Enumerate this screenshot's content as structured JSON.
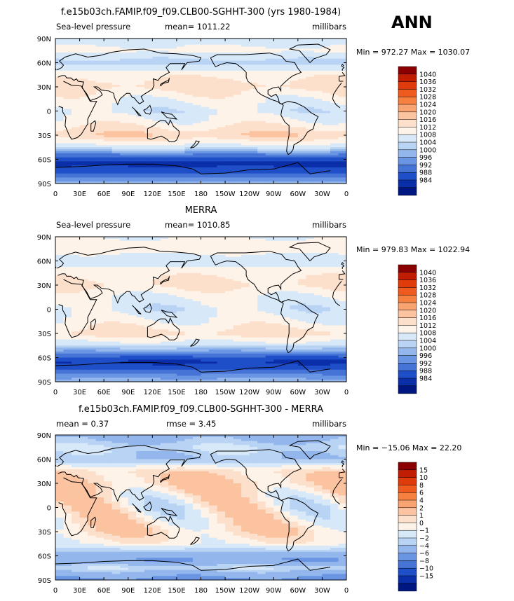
{
  "season": "ANN",
  "chart_data": [
    {
      "type": "heatmap",
      "title": "f.e15b03ch.FAMIP.f09_f09.CLB00-SGHHT-300 (yrs 1980-1984)",
      "variable": "Sea-level pressure",
      "mean_label": "mean= 1011.22",
      "units": "millibars",
      "min_max": "Min = 972.27 Max = 1030.07",
      "x_ticks": [
        "0",
        "30E",
        "60E",
        "90E",
        "120E",
        "150E",
        "180",
        "150W",
        "120W",
        "90W",
        "60W",
        "30W",
        "0"
      ],
      "y_ticks": [
        "90N",
        "60N",
        "30N",
        "0",
        "30S",
        "60S",
        "90S"
      ],
      "lat_profile": [
        {
          "lat": 90,
          "value": 1010
        },
        {
          "lat": 75,
          "value": 1013
        },
        {
          "lat": 60,
          "value": 1006
        },
        {
          "lat": 45,
          "value": 1015
        },
        {
          "lat": 30,
          "value": 1018
        },
        {
          "lat": 15,
          "value": 1013
        },
        {
          "lat": 0,
          "value": 1010
        },
        {
          "lat": -15,
          "value": 1014
        },
        {
          "lat": -30,
          "value": 1020
        },
        {
          "lat": -45,
          "value": 1010
        },
        {
          "lat": -55,
          "value": 994
        },
        {
          "lat": -65,
          "value": 986
        },
        {
          "lat": -75,
          "value": 990
        },
        {
          "lat": -90,
          "value": 1002
        }
      ],
      "colorbar": {
        "labels": [
          "1040",
          "1036",
          "1032",
          "1028",
          "1024",
          "1020",
          "1016",
          "1012",
          "1008",
          "1004",
          "1000",
          "996",
          "992",
          "988",
          "984"
        ],
        "colors": [
          "#8b0000",
          "#c11d02",
          "#e03b0a",
          "#ef5a1e",
          "#f5803f",
          "#f9a272",
          "#fbc3a0",
          "#fde0cb",
          "#fdf3e9",
          "#d7e8f9",
          "#b8d3f3",
          "#93b7ec",
          "#6a95e3",
          "#4573d6",
          "#1f4fc8",
          "#0b2fa8",
          "#001680"
        ]
      }
    },
    {
      "type": "heatmap",
      "title": "MERRA",
      "variable": "Sea-level pressure",
      "mean_label": "mean= 1010.85",
      "units": "millibars",
      "min_max": "Min = 979.83 Max = 1022.94",
      "x_ticks": [
        "0",
        "30E",
        "60E",
        "90E",
        "120E",
        "150E",
        "180",
        "150W",
        "120W",
        "90W",
        "60W",
        "30W",
        "0"
      ],
      "y_ticks": [
        "90N",
        "60N",
        "30N",
        "0",
        "30S",
        "60S",
        "90S"
      ],
      "lat_profile": [
        {
          "lat": 90,
          "value": 1012
        },
        {
          "lat": 75,
          "value": 1014
        },
        {
          "lat": 60,
          "value": 1009
        },
        {
          "lat": 45,
          "value": 1015
        },
        {
          "lat": 30,
          "value": 1017
        },
        {
          "lat": 15,
          "value": 1012
        },
        {
          "lat": 0,
          "value": 1010
        },
        {
          "lat": -15,
          "value": 1013
        },
        {
          "lat": -30,
          "value": 1018
        },
        {
          "lat": -45,
          "value": 1009
        },
        {
          "lat": -55,
          "value": 995
        },
        {
          "lat": -65,
          "value": 987
        },
        {
          "lat": -75,
          "value": 992
        },
        {
          "lat": -90,
          "value": 1003
        }
      ],
      "colorbar": {
        "labels": [
          "1040",
          "1036",
          "1032",
          "1028",
          "1024",
          "1020",
          "1016",
          "1012",
          "1008",
          "1004",
          "1000",
          "996",
          "992",
          "988",
          "984"
        ],
        "colors": [
          "#8b0000",
          "#c11d02",
          "#e03b0a",
          "#ef5a1e",
          "#f5803f",
          "#f9a272",
          "#fbc3a0",
          "#fde0cb",
          "#fdf3e9",
          "#d7e8f9",
          "#b8d3f3",
          "#93b7ec",
          "#6a95e3",
          "#4573d6",
          "#1f4fc8",
          "#0b2fa8",
          "#001680"
        ]
      }
    },
    {
      "type": "heatmap",
      "title": "f.e15b03ch.FAMIP.f09_f09.CLB00-SGHHT-300 - MERRA",
      "variable": "mean =     0.37",
      "mean_label": "rmse =     3.45",
      "units": "millibars",
      "min_max": "Min = −15.06 Max =   22.20",
      "x_ticks": [
        "0",
        "30E",
        "60E",
        "90E",
        "120E",
        "150E",
        "180",
        "150W",
        "120W",
        "90W",
        "60W",
        "30W",
        "0"
      ],
      "y_ticks": [
        "90N",
        "60N",
        "30N",
        "0",
        "30S",
        "60S",
        "90S"
      ],
      "lat_profile": [
        {
          "lat": 90,
          "value": -3
        },
        {
          "lat": 75,
          "value": -1
        },
        {
          "lat": 60,
          "value": -2
        },
        {
          "lat": 45,
          "value": 1.5
        },
        {
          "lat": 30,
          "value": 2
        },
        {
          "lat": 15,
          "value": 1
        },
        {
          "lat": 0,
          "value": 0.5
        },
        {
          "lat": -15,
          "value": 1
        },
        {
          "lat": -30,
          "value": 1.5
        },
        {
          "lat": -45,
          "value": 0.5
        },
        {
          "lat": -55,
          "value": -2
        },
        {
          "lat": -65,
          "value": -4
        },
        {
          "lat": -75,
          "value": -1
        },
        {
          "lat": -90,
          "value": -5
        }
      ],
      "colorbar": {
        "labels": [
          "15",
          "10",
          "8",
          "6",
          "4",
          "2",
          "1",
          "0",
          "−1",
          "−2",
          "−4",
          "−6",
          "−8",
          "−10",
          "−15"
        ],
        "colors": [
          "#8b0000",
          "#c11d02",
          "#e03b0a",
          "#ef5a1e",
          "#f5803f",
          "#f9a272",
          "#fbc3a0",
          "#fde0cb",
          "#fdf3e9",
          "#d7e8f9",
          "#b8d3f3",
          "#93b7ec",
          "#6a95e3",
          "#4573d6",
          "#1f4fc8",
          "#0b2fa8",
          "#001680"
        ]
      }
    }
  ]
}
